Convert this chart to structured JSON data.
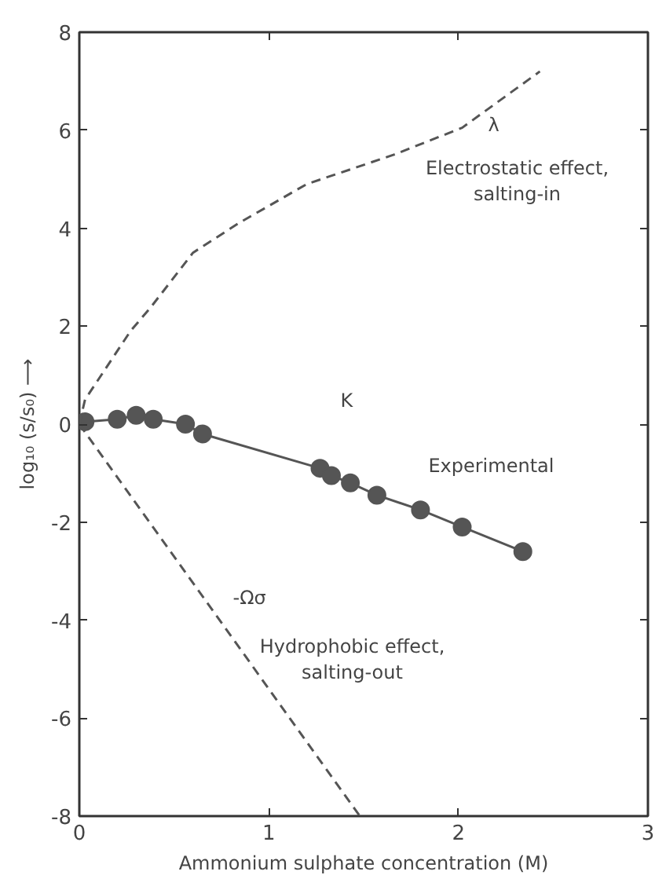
{
  "chart_data": {
    "type": "line",
    "xlabel": "Ammonium sulphate concentration (M)",
    "ylabel": "log₁₀ (s/s₀) ⟶",
    "xlim": [
      0,
      3
    ],
    "ylim": [
      -8,
      8
    ],
    "xticks": [
      0,
      1,
      2,
      3
    ],
    "yticks": [
      -8,
      -6,
      -4,
      -2,
      0,
      2,
      4,
      6,
      8
    ],
    "grid": false,
    "series": [
      {
        "name": "Experimental",
        "color": "#555555",
        "marker": "circle",
        "line_style": "solid",
        "x": [
          0.03,
          0.2,
          0.3,
          0.39,
          0.56,
          0.65,
          1.27,
          1.33,
          1.43,
          1.57,
          1.8,
          2.02,
          2.34
        ],
        "values": [
          0.05,
          0.1,
          0.18,
          0.1,
          0.0,
          -0.2,
          -0.9,
          -1.05,
          -1.2,
          -1.45,
          -1.75,
          -2.1,
          -2.6
        ]
      },
      {
        "name": "λ",
        "color": "#555555",
        "marker": "none",
        "line_style": "dashed",
        "x": [
          0,
          0.03,
          0.27,
          0.38,
          0.6,
          0.84,
          1.2,
          1.66,
          2.02,
          2.43
        ],
        "values": [
          0,
          0.5,
          1.9,
          2.4,
          3.5,
          4.1,
          4.9,
          5.5,
          6.05,
          7.2
        ]
      },
      {
        "name": "-Ωσ",
        "color": "#555555",
        "marker": "none",
        "line_style": "dashed",
        "x": [
          0,
          1.48
        ],
        "values": [
          0,
          -8
        ]
      }
    ],
    "annotations": [
      "Electrostatic effect,\nsalting-in",
      "K",
      "Hydrophobic effect,\nsalting-out"
    ]
  }
}
